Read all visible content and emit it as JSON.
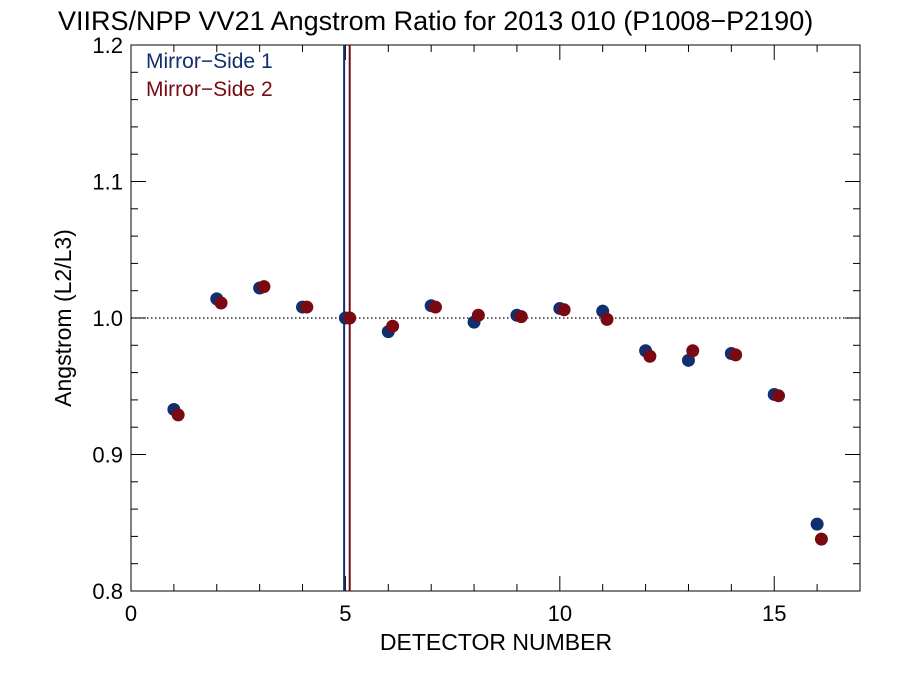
{
  "chart_data": {
    "type": "scatter",
    "title": "VIIRS/NPP VV21 Angstrom Ratio for 2013 010 (P1008−P2190)",
    "xlabel": "DETECTOR NUMBER",
    "ylabel": "Angstrom (L2/L3)",
    "xlim": [
      0,
      17
    ],
    "ylim": [
      0.8,
      1.2
    ],
    "xticks": [
      0,
      5,
      10,
      15
    ],
    "xtick_labels": [
      "0",
      "5",
      "10",
      "15"
    ],
    "yticks": [
      0.8,
      0.9,
      1.0,
      1.1,
      1.2
    ],
    "ytick_labels": [
      "0.8",
      "0.9",
      "1.0",
      "1.1",
      "1.2"
    ],
    "grid": false,
    "legend_position": "top-left",
    "reference_line": {
      "y": 1.0,
      "style": "dotted"
    },
    "vertical_lines": [
      {
        "x": 4.97,
        "color": "#0f2f6f"
      },
      {
        "x": 5.1,
        "color": "#7a0a12"
      }
    ],
    "series": [
      {
        "name": "Mirror−Side 1",
        "color": "#0f2f6f",
        "x": [
          1,
          2,
          3,
          4,
          5,
          6,
          7,
          8,
          9,
          10,
          11,
          12,
          13,
          14,
          15,
          16
        ],
        "y": [
          0.933,
          1.014,
          1.022,
          1.008,
          1.0,
          0.99,
          1.009,
          0.997,
          1.002,
          1.007,
          1.005,
          0.976,
          0.969,
          0.974,
          0.944,
          0.849
        ]
      },
      {
        "name": "Mirror−Side 2",
        "color": "#7a0a12",
        "x": [
          1.1,
          2.1,
          3.1,
          4.1,
          5.1,
          6.1,
          7.1,
          8.1,
          9.1,
          10.1,
          11.1,
          12.1,
          13.1,
          14.1,
          15.1,
          16.1
        ],
        "y": [
          0.929,
          1.011,
          1.023,
          1.008,
          1.0,
          0.994,
          1.008,
          1.002,
          1.001,
          1.006,
          0.999,
          0.972,
          0.976,
          0.973,
          0.943,
          0.838
        ]
      }
    ]
  }
}
